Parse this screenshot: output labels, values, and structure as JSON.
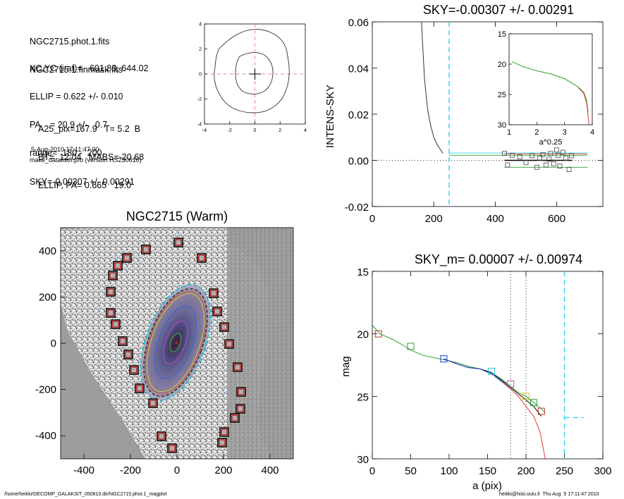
{
  "info": {
    "lines_a": [
      "NGC2715.phot.1.fits",
      "NGC2715.1.finmask.fits"
    ],
    "lines_b": [
      "XC,YC (iraf)=   601.83, 644.02",
      "ELLIP = 0.622 +/- 0.010",
      "PA    = 20.9 +/-   0.7",
      "range=  180.-  200.",
      "SKY=-0.00307 +/- 0.00291"
    ],
    "lines_c": [
      "A25_pix=167.9   T= 5.2  B",
      "BT=  12.04   MABS=-20.68",
      "ELLIP, PA= 0.665   19.0"
    ],
    "date": "5-Aug-2010 17:11:47.00",
    "program": "make_datalist0.pro (version HS230610)"
  },
  "footer": {
    "path": "/home/heikki/DECOMP_GALAKSIT_050810.dir/NGC2715.phot.1_magplot",
    "user": "heikki@hiisi.oulu.fi  Thu Aug  5 17:11:47 2010"
  },
  "image_panel": {
    "title": "NGC2715 (Warm)",
    "xticks": [
      -400,
      -200,
      0,
      200,
      400
    ],
    "yticks": [
      400,
      200,
      0,
      -200,
      -400
    ]
  },
  "contour_panel": {
    "xticks": [
      -4,
      -2,
      0,
      2,
      4
    ],
    "yticks": [
      4,
      2,
      0,
      -2,
      -4
    ]
  },
  "chart_data": [
    {
      "type": "line",
      "title": "SKY=-0.00307 +/- 0.00291",
      "xlabel": "",
      "ylabel": "INTENS-SKY",
      "xlim": [
        0,
        750
      ],
      "ylim": [
        -0.02,
        0.06
      ],
      "xticks": [
        0,
        200,
        400,
        600
      ],
      "yticks": [
        0.06,
        0.04,
        0.02,
        0.0,
        -0.02
      ],
      "yticklabels": [
        "0.06",
        "0.04",
        "0.02",
        "0.00",
        "-0.02"
      ],
      "profile": [
        [
          160,
          0.06
        ],
        [
          170,
          0.035
        ],
        [
          180,
          0.022
        ],
        [
          190,
          0.015
        ],
        [
          200,
          0.01
        ],
        [
          210,
          0.007
        ],
        [
          220,
          0.005
        ],
        [
          230,
          0.003
        ]
      ],
      "sky_points": [
        [
          430,
          0.003
        ],
        [
          440,
          -0.002
        ],
        [
          455,
          0.0022
        ],
        [
          480,
          0.0015
        ],
        [
          500,
          -0.001
        ],
        [
          520,
          0.002
        ],
        [
          535,
          -0.003
        ],
        [
          545,
          0.001
        ],
        [
          555,
          0.0025
        ],
        [
          565,
          -0.002
        ],
        [
          575,
          0.0005
        ],
        [
          580,
          0.003
        ],
        [
          590,
          -0.0015
        ],
        [
          600,
          0.0045
        ],
        [
          605,
          0.0022
        ],
        [
          610,
          -0.0025
        ],
        [
          620,
          0.0035
        ],
        [
          630,
          0.001
        ],
        [
          640,
          -0.004
        ],
        [
          648,
          0.002
        ]
      ]
    },
    {
      "type": "line",
      "title": "",
      "xlabel": "a^0.25",
      "ylabel": "",
      "xlim": [
        1,
        4
      ],
      "ylim": [
        30,
        15
      ],
      "xticks": [
        1,
        2,
        3,
        4
      ],
      "yticks": [
        15,
        20,
        25,
        30
      ],
      "series": [
        {
          "color": "#2ca02c",
          "values": [
            [
              1.1,
              19.6
            ],
            [
              1.5,
              20.4
            ],
            [
              2.0,
              21.1
            ],
            [
              2.5,
              21.6
            ],
            [
              3.0,
              22.4
            ],
            [
              3.3,
              23.2
            ],
            [
              3.5,
              23.8
            ],
            [
              3.7,
              24.7
            ],
            [
              3.8,
              26.0
            ],
            [
              3.85,
              28.0
            ]
          ]
        },
        {
          "color": "#e33a3a",
          "values": [
            [
              3.5,
              23.9
            ],
            [
              3.7,
              24.9
            ],
            [
              3.8,
              26.5
            ],
            [
              3.85,
              28.5
            ],
            [
              3.88,
              30
            ]
          ]
        }
      ]
    },
    {
      "type": "line",
      "title": "SKY_m=  0.00007 +/- 0.00974",
      "xlabel": "a (pix)",
      "ylabel": "mag",
      "xlim": [
        0,
        300
      ],
      "ylim": [
        30,
        15
      ],
      "xticks": [
        0,
        50,
        100,
        150,
        200,
        250,
        300
      ],
      "yticks": [
        15,
        20,
        25,
        30
      ],
      "series": [
        {
          "color": "#2ca02c",
          "values": [
            [
              0,
              19.3
            ],
            [
              10,
              20.0
            ],
            [
              25,
              20.4
            ],
            [
              40,
              20.9
            ],
            [
              50,
              21.3
            ],
            [
              65,
              21.7
            ],
            [
              80,
              21.9
            ],
            [
              95,
              22.1
            ],
            [
              110,
              22.3
            ],
            [
              125,
              22.6
            ],
            [
              140,
              22.8
            ],
            [
              155,
              23.1
            ],
            [
              170,
              23.7
            ],
            [
              180,
              24.2
            ],
            [
              190,
              24.7
            ],
            [
              200,
              25.0
            ],
            [
              210,
              25.5
            ],
            [
              220,
              26.0
            ],
            [
              225,
              26.3
            ]
          ]
        },
        {
          "color": "#000000",
          "values": [
            [
              93,
              22.0
            ],
            [
              110,
              22.4
            ],
            [
              125,
              22.7
            ],
            [
              140,
              22.8
            ],
            [
              155,
              23.1
            ],
            [
              170,
              23.8
            ],
            [
              180,
              24.3
            ],
            [
              190,
              24.8
            ],
            [
              200,
              25.3
            ],
            [
              210,
              25.8
            ],
            [
              220,
              26.6
            ]
          ]
        },
        {
          "color": "#1f3fd0",
          "values": [
            [
              93,
              22.0
            ],
            [
              110,
              22.4
            ],
            [
              125,
              22.7
            ],
            [
              140,
              22.8
            ],
            [
              155,
              23.2
            ],
            [
              170,
              23.9
            ],
            [
              180,
              24.4
            ]
          ]
        },
        {
          "color": "#e33a3a",
          "values": [
            [
              170,
              23.9
            ],
            [
              180,
              24.4
            ],
            [
              190,
              25.0
            ],
            [
              200,
              25.8
            ],
            [
              210,
              26.6
            ],
            [
              218,
              27.8
            ],
            [
              222,
              29.0
            ],
            [
              225,
              30.0
            ]
          ]
        }
      ],
      "markers": [
        {
          "x": 8,
          "y": 20.0,
          "color": "#c0392b"
        },
        {
          "x": 50,
          "y": 21.0,
          "color": "#2ca02c"
        },
        {
          "x": 93,
          "y": 22.0,
          "color": "#1f3fd0"
        },
        {
          "x": 155,
          "y": 23.0,
          "color": "#26c6da"
        },
        {
          "x": 180,
          "y": 24.0,
          "color": "#c050c0"
        },
        {
          "x": 200,
          "y": 25.0,
          "color": "#c0c020"
        },
        {
          "x": 210,
          "y": 25.5,
          "color": "#2ca02c"
        },
        {
          "x": 220,
          "y": 26.2,
          "color": "#c0392b"
        }
      ],
      "vlines": [
        180,
        200
      ],
      "sky_x": 250,
      "sky_level": 26.7
    }
  ]
}
